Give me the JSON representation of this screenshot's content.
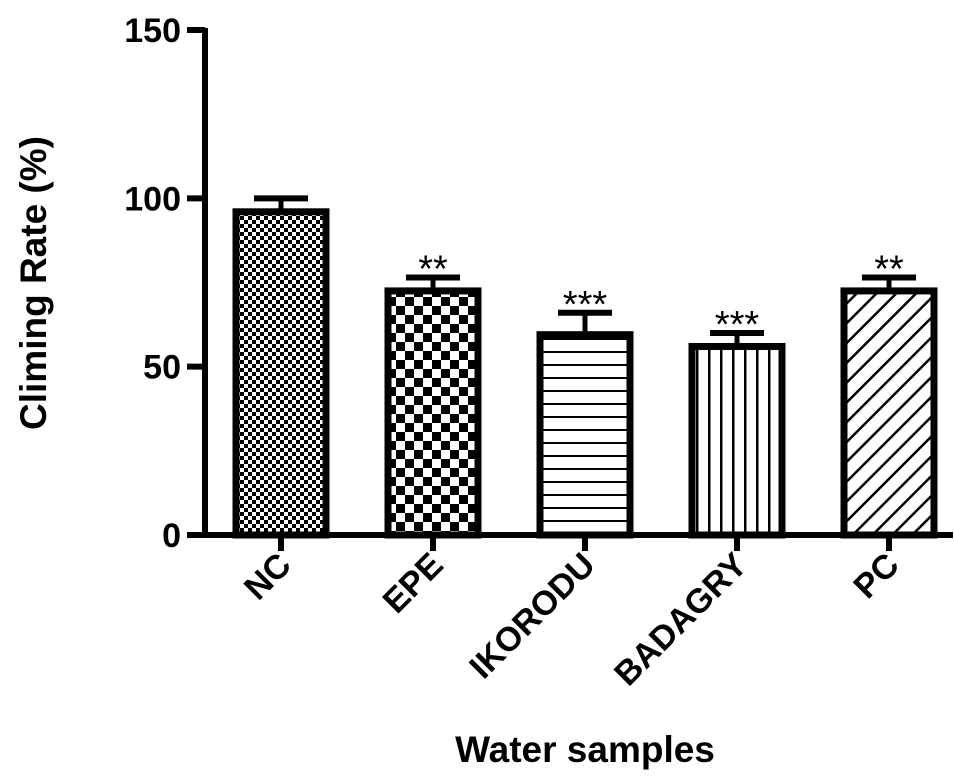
{
  "chart_data": {
    "type": "bar",
    "title": "",
    "xlabel": "Water samples",
    "ylabel": "Climing Rate (%)",
    "ylim": [
      0,
      150
    ],
    "y_ticks": [
      0,
      50,
      100,
      150
    ],
    "grid": false,
    "categories": [
      "NC",
      "EPE",
      "IKORODU",
      "BADAGRY",
      "PC"
    ],
    "values": [
      96,
      72.5,
      59.5,
      56,
      72.5
    ],
    "error_upper": [
      100,
      76.5,
      66,
      60,
      76.5
    ],
    "significance": [
      "",
      "**",
      "***",
      "***",
      "**"
    ],
    "patterns": [
      "fine-checker",
      "coarse-checker",
      "horizontal-lines",
      "vertical-lines",
      "diagonal-lines"
    ],
    "colors": {
      "bar_stroke": "#000000",
      "bar_fill": "#ffffff"
    }
  }
}
